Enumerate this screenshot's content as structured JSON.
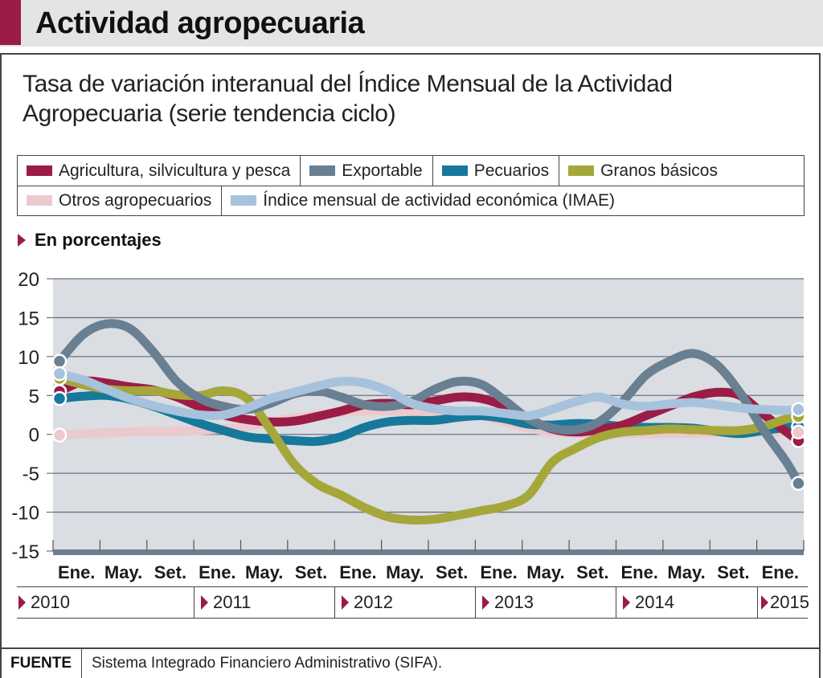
{
  "header": {
    "title": "Actividad agropecuaria"
  },
  "subtitle": "Tasa de variación interanual del Índice Mensual de la Actividad Agropecuaria (serie tendencia ciclo)",
  "unit_label": "En porcentajes",
  "legend": [
    {
      "label": "Agricultura, silvicultura y pesca",
      "color": "#9b1c46"
    },
    {
      "label": "Exportable",
      "color": "#697f92"
    },
    {
      "label": "Pecuarios",
      "color": "#16799c"
    },
    {
      "label": "Granos básicos",
      "color": "#a5a73a"
    },
    {
      "label": "Otros agropecuarios",
      "color": "#ecc9cc"
    },
    {
      "label": "Índice mensual de actividad económica (IMAE)",
      "color": "#a7c2dc"
    }
  ],
  "years": [
    "2010",
    "2011",
    "2012",
    "2013",
    "2014",
    "2015"
  ],
  "footer": {
    "label": "FUENTE",
    "text": "Sistema Integrado Financiero Administrativo (SIFA)."
  },
  "chart_data": {
    "type": "line",
    "title": "Tasa de variación interanual del Índice Mensual de la Actividad Agropecuaria (serie tendencia ciclo)",
    "ylabel": "En porcentajes",
    "xlabel": "",
    "ylim": [
      -15,
      20
    ],
    "yticks": [
      "20",
      "15",
      "10",
      "5",
      "0",
      "-5",
      "-10",
      "-15"
    ],
    "ytick_values": [
      20,
      15,
      10,
      5,
      0,
      -5,
      -10,
      -15
    ],
    "xtick_labels": [
      "Ene.",
      "May.",
      "Set.",
      "Ene.",
      "May.",
      "Set.",
      "Ene.",
      "May.",
      "Set.",
      "Ene.",
      "May.",
      "Set.",
      "Ene.",
      "May.",
      "Set.",
      "Ene."
    ],
    "x_start": "Ene. 2010",
    "x_end": "Abr. 2015",
    "x_months": 64,
    "grid": true,
    "legend_position": "top",
    "sample_months": [
      0,
      2,
      4,
      6,
      8,
      10,
      12,
      14,
      16,
      18,
      20,
      22,
      24,
      26,
      28,
      30,
      32,
      34,
      36,
      38,
      40,
      42,
      44,
      46,
      48,
      50,
      52,
      54,
      56,
      58,
      60,
      62,
      63
    ],
    "series": [
      {
        "name": "Agricultura, silvicultura y pesca",
        "color": "#9b1c46",
        "values": [
          5.5,
          6.8,
          6.6,
          6.1,
          5.7,
          4.8,
          3.5,
          2.5,
          1.9,
          1.6,
          1.7,
          2.3,
          3.0,
          3.8,
          4.0,
          3.8,
          4.3,
          4.8,
          4.6,
          3.6,
          2.0,
          0.7,
          0.3,
          0.6,
          1.2,
          2.4,
          3.6,
          4.8,
          5.4,
          5.0,
          2.6,
          0.3,
          -0.8
        ]
      },
      {
        "name": "Exportable",
        "color": "#697f92",
        "values": [
          9.4,
          12.8,
          14.2,
          13.6,
          10.6,
          6.8,
          4.6,
          3.6,
          3.2,
          4.0,
          5.2,
          5.6,
          4.8,
          3.8,
          3.6,
          4.2,
          5.8,
          6.8,
          6.4,
          4.3,
          2.0,
          0.8,
          0.6,
          1.6,
          4.2,
          7.6,
          9.4,
          10.4,
          9.0,
          5.4,
          0.6,
          -3.6,
          -6.3
        ]
      },
      {
        "name": "Pecuarios",
        "color": "#16799c",
        "values": [
          4.6,
          4.9,
          5.0,
          4.5,
          3.6,
          2.5,
          1.4,
          0.5,
          -0.3,
          -0.6,
          -0.8,
          -0.9,
          -0.3,
          0.9,
          1.6,
          1.8,
          1.8,
          2.2,
          2.4,
          2.0,
          1.3,
          1.2,
          1.4,
          1.3,
          1.0,
          0.9,
          0.9,
          0.8,
          0.4,
          0.1,
          0.5,
          0.9,
          1.0
        ]
      },
      {
        "name": "Granos básicos",
        "color": "#a5a73a",
        "values": [
          7.2,
          6.4,
          5.8,
          5.6,
          5.6,
          5.1,
          5.0,
          5.6,
          4.6,
          0.6,
          -3.8,
          -6.4,
          -7.8,
          -9.4,
          -10.6,
          -11.0,
          -10.9,
          -10.4,
          -9.8,
          -9.2,
          -7.8,
          -3.6,
          -1.8,
          -0.4,
          0.3,
          0.5,
          0.7,
          0.6,
          0.5,
          0.5,
          1.0,
          2.0,
          2.3
        ]
      },
      {
        "name": "Otros agropecuarios",
        "color": "#ecc9cc",
        "values": [
          -0.1,
          0.1,
          0.2,
          0.3,
          0.4,
          0.4,
          0.5,
          0.7,
          1.0,
          1.6,
          2.1,
          2.5,
          2.8,
          3.0,
          3.0,
          2.9,
          2.7,
          2.6,
          2.4,
          1.6,
          0.8,
          0.3,
          0.1,
          0.1,
          0.1,
          0.1,
          0.1,
          0.1,
          0.2,
          0.3,
          0.3,
          0.3,
          0.3
        ]
      },
      {
        "name": "Índice mensual de actividad económica (IMAE)",
        "color": "#a7c2dc",
        "values": [
          7.8,
          7.0,
          5.8,
          4.6,
          3.7,
          3.0,
          2.5,
          2.5,
          3.4,
          4.6,
          5.4,
          6.2,
          6.8,
          6.6,
          5.6,
          4.0,
          3.3,
          3.0,
          3.0,
          2.7,
          2.4,
          3.2,
          4.2,
          4.8,
          3.9,
          3.6,
          3.9,
          4.1,
          3.8,
          3.4,
          3.2,
          3.1,
          3.2
        ]
      }
    ]
  }
}
